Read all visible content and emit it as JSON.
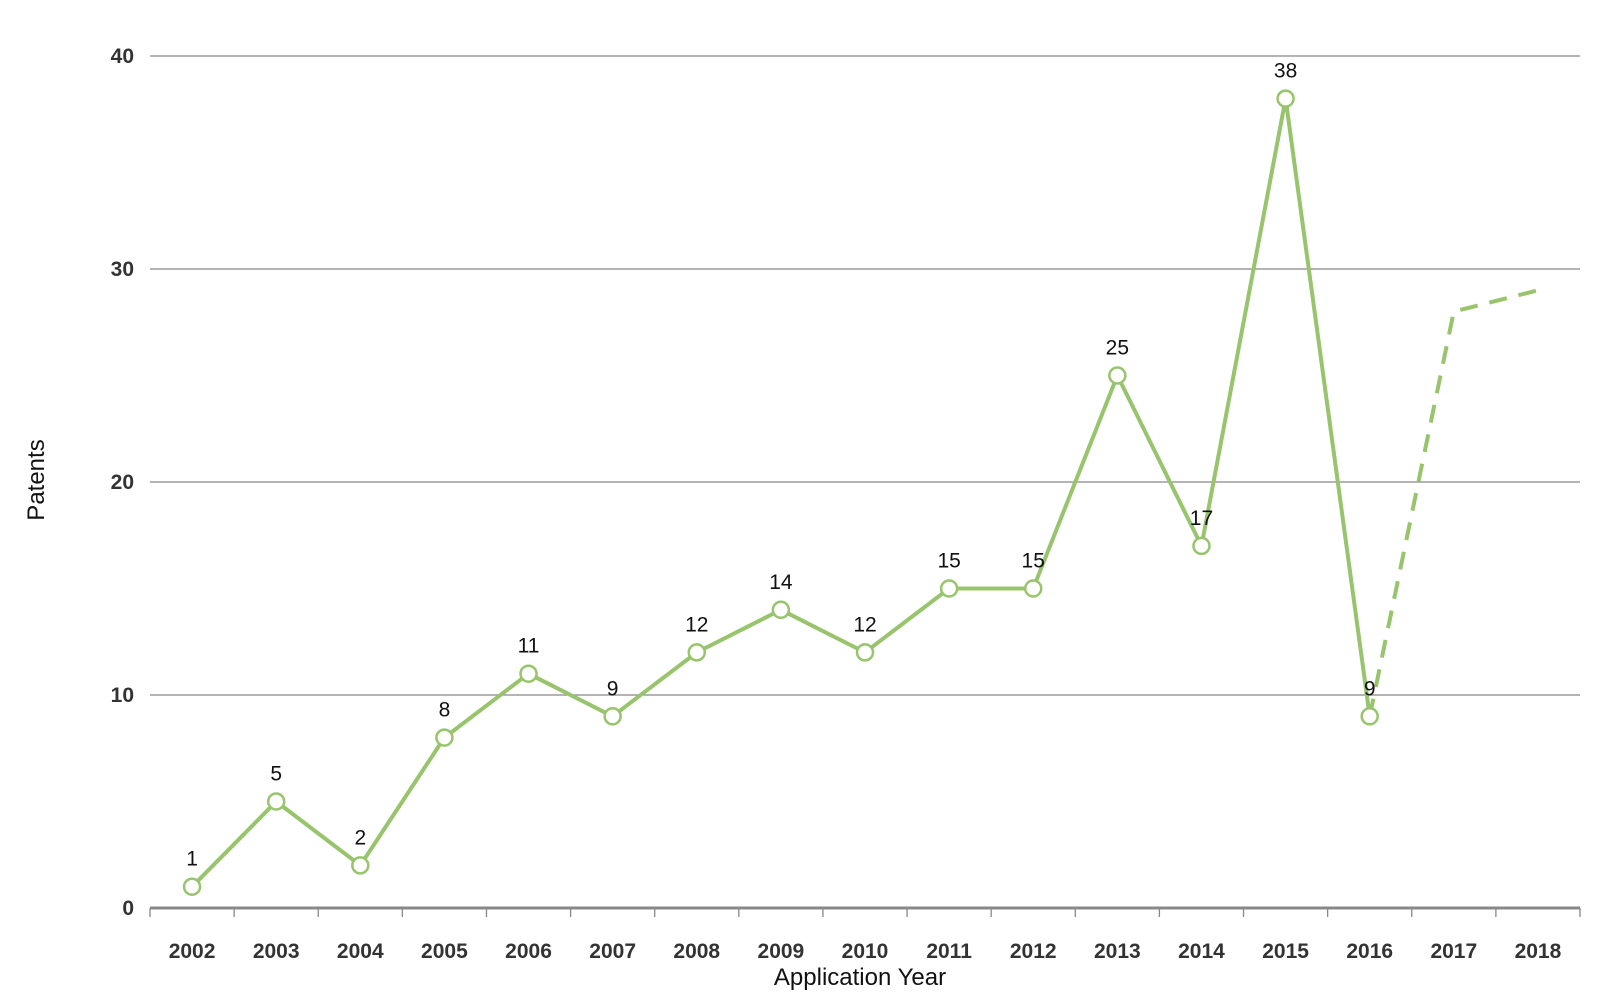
{
  "chart_data": {
    "type": "line",
    "xlabel": "Application Year",
    "ylabel": "Patents",
    "ylim": [
      0,
      40
    ],
    "yticks": [
      "0",
      "10",
      "20",
      "30",
      "40"
    ],
    "categories": [
      "2002",
      "2003",
      "2004",
      "2005",
      "2006",
      "2007",
      "2008",
      "2009",
      "2010",
      "2011",
      "2012",
      "2013",
      "2014",
      "2015",
      "2016",
      "2017",
      "2018"
    ],
    "series": [
      {
        "style": "solid",
        "values": [
          1,
          5,
          2,
          8,
          11,
          9,
          12,
          14,
          12,
          15,
          15,
          25,
          17,
          38,
          9,
          null,
          null
        ],
        "labels": [
          "1",
          "5",
          "2",
          "8",
          "11",
          "9",
          "12",
          "14",
          "12",
          "15",
          "15",
          "25",
          "17",
          "38",
          "9",
          "",
          ""
        ]
      },
      {
        "style": "dashed",
        "values": [
          null,
          null,
          null,
          null,
          null,
          null,
          null,
          null,
          null,
          null,
          null,
          null,
          null,
          null,
          9,
          28,
          29
        ]
      }
    ],
    "grid": true,
    "legend": "none",
    "colors": {
      "line": "#97c46c",
      "marker_fill": "#ffffff",
      "grid": "#888888",
      "axis": "#888888"
    }
  }
}
